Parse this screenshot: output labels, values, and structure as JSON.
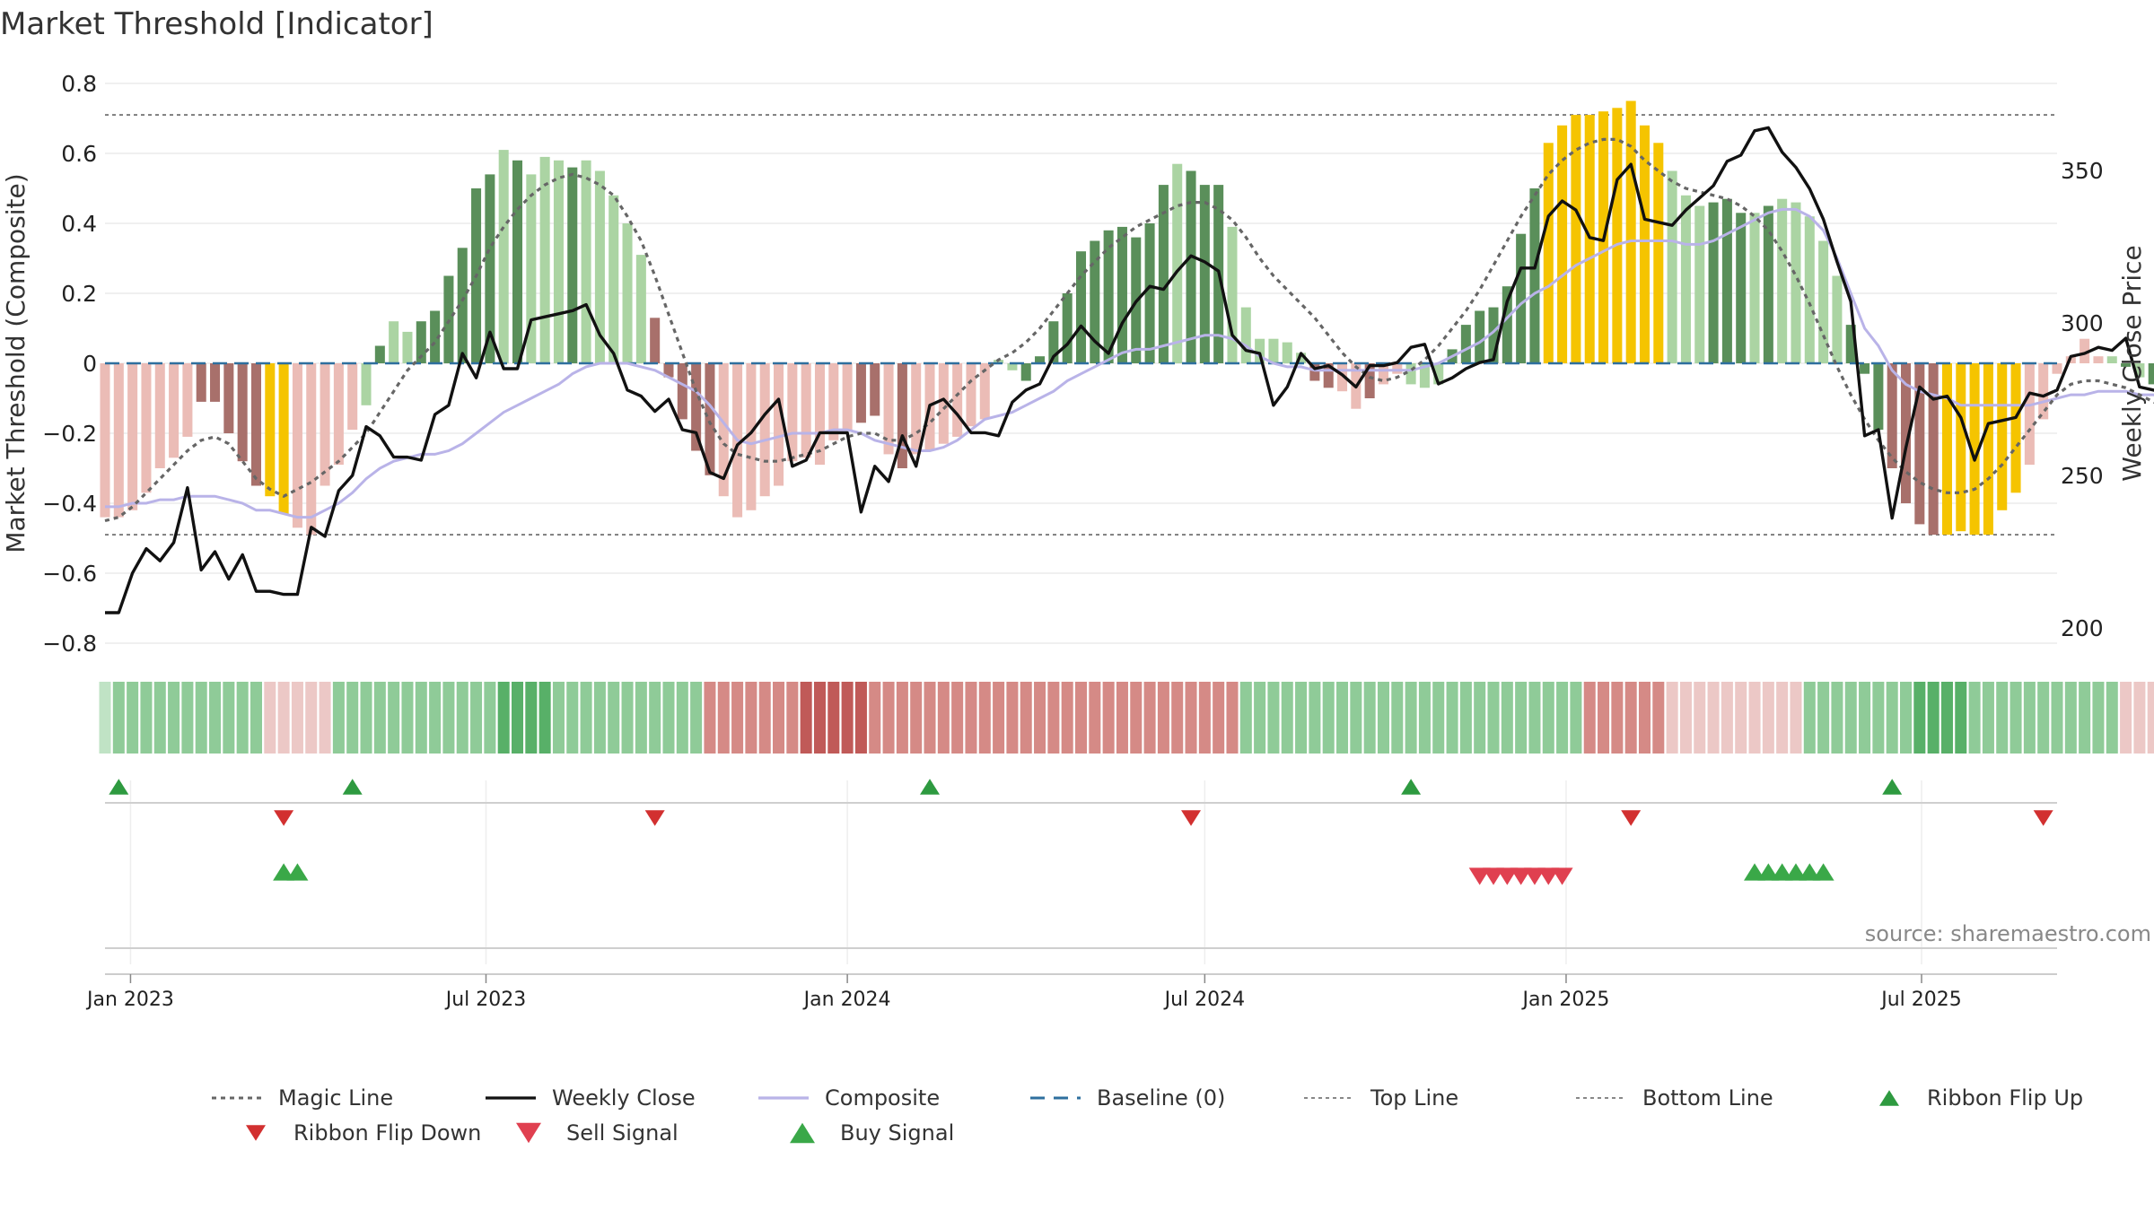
{
  "title": "Market Threshold [Indicator]",
  "source": "source: sharemaestro.com",
  "chart_data": {
    "type": "bar",
    "title": "Market Threshold [Indicator]",
    "ylabel_left": "Market Threshold (Composite)",
    "ylabel_right": "Weekly Close Price",
    "ylim_left": [
      -0.8,
      0.8
    ],
    "yticks_left": [
      -0.8,
      -0.6,
      -0.4,
      -0.2,
      0,
      0.2,
      0.4,
      0.6,
      0.8
    ],
    "ytick_labels_left": [
      "−0.8",
      "−0.6",
      "−0.4",
      "−0.2",
      "0",
      "0.2",
      "0.4",
      "0.6",
      "0.8"
    ],
    "ylim_right": [
      200,
      350
    ],
    "yticks_right": [
      200,
      250,
      300,
      350
    ],
    "x_range": [
      "2022-12-19",
      "2025-09-08"
    ],
    "x_ticks": [
      {
        "date": "2023-01-01",
        "label": "Jan 2023"
      },
      {
        "date": "2023-07-01",
        "label": "Jul 2023"
      },
      {
        "date": "2024-01-01",
        "label": "Jan 2024"
      },
      {
        "date": "2024-07-01",
        "label": "Jul 2024"
      },
      {
        "date": "2025-01-01",
        "label": "Jan 2025"
      },
      {
        "date": "2025-07-01",
        "label": "Jul 2025"
      }
    ],
    "top_line": 0.71,
    "bottom_line": -0.49,
    "baseline": 0,
    "grid": true,
    "start_date": "2022-12-19",
    "composite_bars": [
      -0.44,
      -0.44,
      -0.42,
      -0.37,
      -0.3,
      -0.27,
      -0.21,
      -0.11,
      -0.11,
      -0.2,
      -0.28,
      -0.35,
      -0.38,
      -0.43,
      -0.47,
      -0.49,
      -0.35,
      -0.29,
      -0.19,
      -0.12,
      0.05,
      0.12,
      0.09,
      0.12,
      0.15,
      0.25,
      0.33,
      0.5,
      0.54,
      0.61,
      0.58,
      0.54,
      0.59,
      0.58,
      0.56,
      0.58,
      0.55,
      0.48,
      0.4,
      0.31,
      0.13,
      -0.04,
      -0.16,
      -0.25,
      -0.32,
      -0.38,
      -0.44,
      -0.42,
      -0.38,
      -0.35,
      -0.28,
      -0.27,
      -0.29,
      -0.22,
      -0.19,
      -0.17,
      -0.15,
      -0.26,
      -0.3,
      -0.26,
      -0.25,
      -0.23,
      -0.21,
      -0.18,
      -0.16,
      0.01,
      -0.02,
      -0.05,
      0.02,
      0.12,
      0.2,
      0.32,
      0.35,
      0.38,
      0.39,
      0.36,
      0.4,
      0.51,
      0.57,
      0.55,
      0.51,
      0.51,
      0.39,
      0.16,
      0.07,
      0.07,
      0.06,
      0.03,
      -0.05,
      -0.07,
      -0.08,
      -0.13,
      -0.1,
      -0.06,
      -0.03,
      -0.06,
      -0.07,
      -0.06,
      0.04,
      0.11,
      0.15,
      0.16,
      0.22,
      0.37,
      0.5,
      0.63,
      0.68,
      0.71,
      0.71,
      0.72,
      0.73,
      0.75,
      0.68,
      0.63,
      0.55,
      0.48,
      0.45,
      0.46,
      0.47,
      0.43,
      0.43,
      0.45,
      0.47,
      0.46,
      0.42,
      0.35,
      0.25,
      0.11,
      -0.03,
      -0.19,
      -0.3,
      -0.4,
      -0.46,
      -0.49,
      -0.49,
      -0.48,
      -0.49,
      -0.49,
      -0.42,
      -0.37,
      -0.29,
      -0.16,
      -0.03,
      0.02,
      0.07,
      0.02,
      0.02,
      -0.01,
      -0.04,
      -0.06,
      -0.07,
      -0.1,
      -0.17,
      -0.35
    ],
    "bar_colors_key": {
      "G": "#5a8f5a",
      "g": "#abd4a3",
      "R": "#a8706b",
      "r": "#ebbcb6",
      "Y": "#f5c400"
    },
    "bar_color_codes": "rrrrrrrRRRRRYYrrrrrgGggGGGGGGgGgggGgggggRRRRRrrrrrrrrrrRRrRrrrrrrggGGGGGGGGGGGgGGGggggggRRrrRrrgggGGGGGGGYYYYYYYYYgggGGGgGgggggGGGRRRRYYYYYYrrrrrrgGgGgggRRRR",
    "magic_line": [
      -0.45,
      -0.44,
      -0.41,
      -0.37,
      -0.33,
      -0.29,
      -0.25,
      -0.22,
      -0.21,
      -0.23,
      -0.28,
      -0.33,
      -0.36,
      -0.38,
      -0.36,
      -0.34,
      -0.31,
      -0.28,
      -0.24,
      -0.2,
      -0.14,
      -0.08,
      -0.02,
      0.02,
      0.06,
      0.12,
      0.18,
      0.25,
      0.33,
      0.39,
      0.44,
      0.48,
      0.51,
      0.53,
      0.54,
      0.53,
      0.51,
      0.48,
      0.42,
      0.35,
      0.25,
      0.14,
      0.03,
      -0.08,
      -0.17,
      -0.23,
      -0.26,
      -0.27,
      -0.28,
      -0.28,
      -0.27,
      -0.26,
      -0.25,
      -0.23,
      -0.21,
      -0.2,
      -0.2,
      -0.22,
      -0.22,
      -0.2,
      -0.17,
      -0.13,
      -0.09,
      -0.05,
      -0.02,
      0.01,
      0.03,
      0.06,
      0.1,
      0.15,
      0.2,
      0.25,
      0.29,
      0.33,
      0.36,
      0.39,
      0.41,
      0.43,
      0.45,
      0.46,
      0.46,
      0.44,
      0.41,
      0.36,
      0.3,
      0.25,
      0.21,
      0.17,
      0.13,
      0.08,
      0.03,
      -0.01,
      -0.04,
      -0.05,
      -0.04,
      -0.02,
      0.01,
      0.05,
      0.1,
      0.15,
      0.21,
      0.28,
      0.35,
      0.42,
      0.48,
      0.54,
      0.58,
      0.61,
      0.63,
      0.64,
      0.64,
      0.62,
      0.58,
      0.55,
      0.52,
      0.5,
      0.49,
      0.48,
      0.47,
      0.45,
      0.42,
      0.38,
      0.32,
      0.25,
      0.17,
      0.08,
      -0.01,
      -0.09,
      -0.16,
      -0.22,
      -0.27,
      -0.31,
      -0.34,
      -0.36,
      -0.37,
      -0.37,
      -0.36,
      -0.33,
      -0.29,
      -0.24,
      -0.19,
      -0.14,
      -0.09,
      -0.06,
      -0.05,
      -0.05,
      -0.06,
      -0.07,
      -0.09,
      -0.11,
      -0.13,
      -0.15
    ],
    "composite_line": [
      -0.41,
      -0.41,
      -0.4,
      -0.4,
      -0.39,
      -0.39,
      -0.38,
      -0.38,
      -0.38,
      -0.39,
      -0.4,
      -0.42,
      -0.42,
      -0.43,
      -0.44,
      -0.44,
      -0.42,
      -0.4,
      -0.37,
      -0.33,
      -0.3,
      -0.28,
      -0.27,
      -0.26,
      -0.26,
      -0.25,
      -0.23,
      -0.2,
      -0.17,
      -0.14,
      -0.12,
      -0.1,
      -0.08,
      -0.06,
      -0.03,
      -0.01,
      0.0,
      0.0,
      0.0,
      -0.01,
      -0.02,
      -0.04,
      -0.06,
      -0.08,
      -0.12,
      -0.17,
      -0.22,
      -0.23,
      -0.22,
      -0.21,
      -0.2,
      -0.2,
      -0.2,
      -0.19,
      -0.19,
      -0.2,
      -0.22,
      -0.23,
      -0.24,
      -0.25,
      -0.25,
      -0.24,
      -0.22,
      -0.19,
      -0.16,
      -0.15,
      -0.14,
      -0.12,
      -0.1,
      -0.08,
      -0.05,
      -0.03,
      -0.01,
      0.01,
      0.03,
      0.04,
      0.04,
      0.05,
      0.06,
      0.07,
      0.08,
      0.08,
      0.07,
      0.05,
      0.02,
      0.0,
      -0.01,
      -0.01,
      -0.02,
      -0.02,
      -0.02,
      -0.02,
      -0.02,
      -0.02,
      -0.02,
      -0.02,
      -0.01,
      0.0,
      0.02,
      0.04,
      0.06,
      0.09,
      0.13,
      0.17,
      0.2,
      0.22,
      0.25,
      0.28,
      0.3,
      0.32,
      0.34,
      0.35,
      0.35,
      0.35,
      0.35,
      0.34,
      0.34,
      0.35,
      0.37,
      0.39,
      0.41,
      0.43,
      0.44,
      0.44,
      0.42,
      0.38,
      0.3,
      0.2,
      0.1,
      0.05,
      -0.02,
      -0.06,
      -0.08,
      -0.09,
      -0.1,
      -0.12,
      -0.12,
      -0.12,
      -0.12,
      -0.12,
      -0.12,
      -0.11,
      -0.1,
      -0.09,
      -0.09,
      -0.08,
      -0.08,
      -0.08,
      -0.09,
      -0.09,
      -0.1,
      -0.11,
      -0.12,
      -0.14
    ],
    "weekly_close": [
      205,
      205,
      218,
      226,
      222,
      228,
      246,
      219,
      225,
      216,
      224,
      212,
      212,
      211,
      211,
      233,
      230,
      245,
      250,
      266,
      263,
      256,
      256,
      255,
      270,
      273,
      290,
      282,
      297,
      285,
      285,
      301,
      302,
      303,
      304,
      306,
      296,
      290,
      278,
      276,
      271,
      275,
      265,
      264,
      251,
      249,
      260,
      264,
      270,
      275,
      253,
      255,
      264,
      264,
      264,
      238,
      253,
      248,
      263,
      253,
      273,
      275,
      270,
      264,
      264,
      263,
      274,
      278,
      280,
      289,
      293,
      299,
      294,
      290,
      300,
      307,
      312,
      311,
      317,
      322,
      320,
      317,
      296,
      291,
      290,
      273,
      279,
      290,
      285,
      286,
      283,
      279,
      286,
      286,
      287,
      292,
      293,
      280,
      282,
      285,
      287,
      288,
      307,
      318,
      318,
      335,
      340,
      337,
      328,
      327,
      347,
      352,
      334,
      333,
      332,
      337,
      341,
      345,
      353,
      355,
      363,
      364,
      356,
      351,
      344,
      334,
      320,
      307,
      263,
      265,
      236,
      259,
      279,
      275,
      276,
      269,
      255,
      267,
      268,
      269,
      277,
      276,
      278,
      289,
      290,
      292,
      291,
      295,
      279,
      278,
      277,
      275,
      275,
      266,
      262,
      258
    ],
    "ribbon_colors_key": {
      "G": "#58b068",
      "g": "#8fcb98",
      "p": "#c0e3c5",
      "R": "#c05a58",
      "r": "#d58a86",
      "q": "#ecc8c6"
    },
    "ribbon_codes": "pgggggggggggqqqqqggggggggggggGGGGgggggggggggrrrrrrrRRRRRrrrrrrrrrrrrrrrrrrrrrrrrrrrgggggggggggggggggggggggggrrrrrrqqqqqqqqqqggggggggGGGGgggggggggggqqqqqqqqqqqqrrrrRRRRRRRRRRRrrrrrrrgggggggggggggqq",
    "ribbon_flip_up": [
      "2022-12-26",
      "2023-04-24",
      "2024-02-12",
      "2024-10-14",
      "2025-06-16"
    ],
    "ribbon_flip_down": [
      "2023-03-20",
      "2023-09-25",
      "2024-06-24",
      "2025-02-03",
      "2025-09-01"
    ],
    "sell_signals": [
      "2024-11-18",
      "2024-11-25",
      "2024-12-02",
      "2024-12-09",
      "2024-12-16",
      "2024-12-23",
      "2024-12-30"
    ],
    "buy_signals": [
      "2023-03-20",
      "2023-03-27",
      "2025-04-07",
      "2025-04-14",
      "2025-04-21",
      "2025-04-28",
      "2025-05-05",
      "2025-05-12"
    ],
    "legend_position": "bottom",
    "legend": [
      {
        "label": "Magic Line",
        "kind": "dotted",
        "color": "#666666"
      },
      {
        "label": "Weekly Close",
        "kind": "solid",
        "color": "#111111"
      },
      {
        "label": "Composite",
        "kind": "solid",
        "color": "#b9b3e8"
      },
      {
        "label": "Baseline (0)",
        "kind": "dashed",
        "color": "#2e6f9e"
      },
      {
        "label": "Top Line",
        "kind": "dotted-light",
        "color": "#888888"
      },
      {
        "label": "Bottom Line",
        "kind": "dotted-light",
        "color": "#888888"
      },
      {
        "label": "Ribbon Flip Up",
        "kind": "tri-up-small",
        "color": "#2e9a40"
      },
      {
        "label": "Ribbon Flip Down",
        "kind": "tri-down-small",
        "color": "#d23030"
      },
      {
        "label": "Sell Signal",
        "kind": "tri-down",
        "color": "#e04050"
      },
      {
        "label": "Buy Signal",
        "kind": "tri-up",
        "color": "#3aa848"
      }
    ]
  }
}
